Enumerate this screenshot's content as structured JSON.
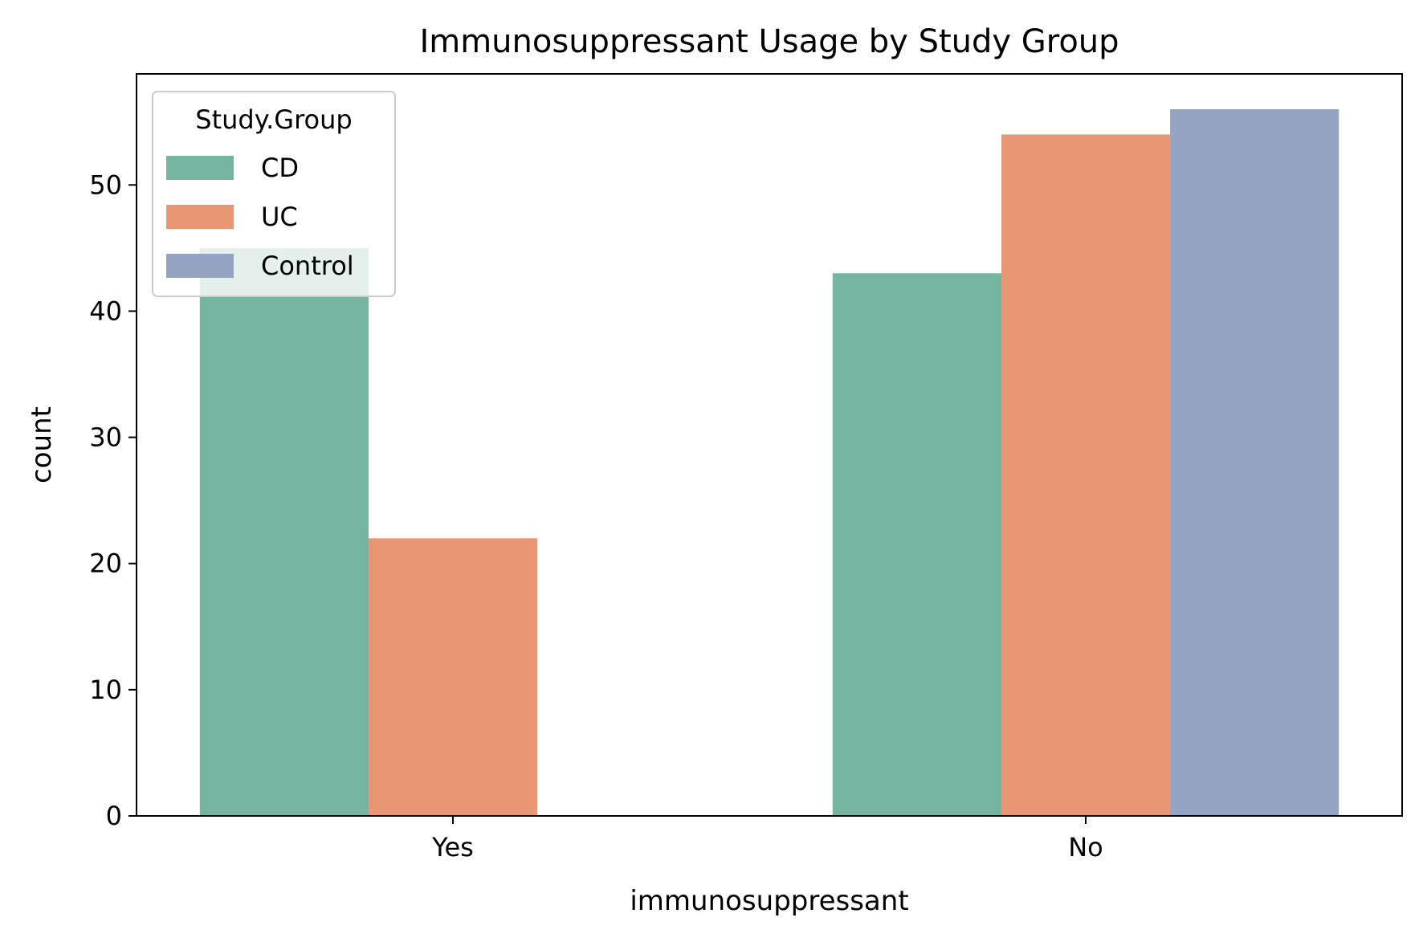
{
  "chart_data": {
    "type": "bar",
    "title": "Immunosuppressant Usage by Study Group",
    "xlabel": "immunosuppressant",
    "ylabel": "count",
    "categories": [
      "Yes",
      "No"
    ],
    "series": [
      {
        "name": "CD",
        "color": "#74b4a0",
        "values": [
          45,
          43
        ]
      },
      {
        "name": "UC",
        "color": "#e89674",
        "values": [
          22,
          54
        ]
      },
      {
        "name": "Control",
        "color": "#96a4c3",
        "values": [
          0,
          56
        ]
      }
    ],
    "ylim": [
      0,
      58.8
    ],
    "yticks": [
      0,
      10,
      20,
      30,
      40,
      50
    ],
    "grid": false,
    "legend": {
      "title": "Study.Group",
      "placement": "top-left"
    }
  }
}
